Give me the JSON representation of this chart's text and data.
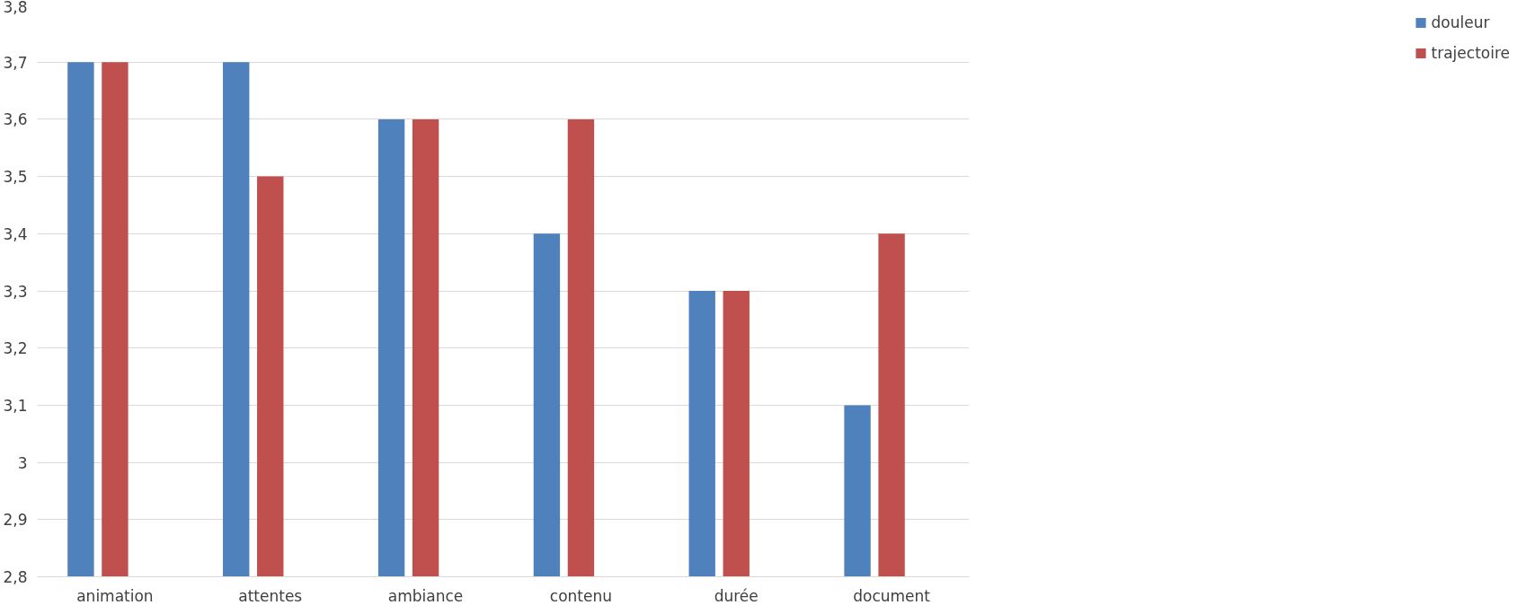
{
  "chart_data": {
    "type": "bar",
    "categories": [
      "animation",
      "attentes",
      "ambiance",
      "contenu",
      "durée",
      "document"
    ],
    "series": [
      {
        "name": "douleur",
        "color": "#4f81bd",
        "values": [
          3.7,
          3.7,
          3.6,
          3.4,
          3.3,
          3.1
        ]
      },
      {
        "name": "trajectoire",
        "color": "#c0504d",
        "values": [
          3.7,
          3.5,
          3.6,
          3.6,
          3.3,
          3.4
        ]
      }
    ],
    "ylim": [
      2.8,
      3.8
    ],
    "yticks": [
      {
        "value": 2.8,
        "label": "2,8"
      },
      {
        "value": 2.9,
        "label": "2,9"
      },
      3,
      {
        "value": 3.1,
        "label": "3,1"
      },
      {
        "value": 3.2,
        "label": "3,2"
      },
      {
        "value": 3.3,
        "label": "3,3"
      },
      {
        "value": 3.4,
        "label": "3,4"
      },
      {
        "value": 3.5,
        "label": "3,5"
      },
      {
        "value": 3.6,
        "label": "3,6"
      },
      {
        "value": 3.7,
        "label": "3,7"
      },
      {
        "value": 3.8,
        "label": "3,8"
      }
    ],
    "grid": "y",
    "legend": "right"
  }
}
